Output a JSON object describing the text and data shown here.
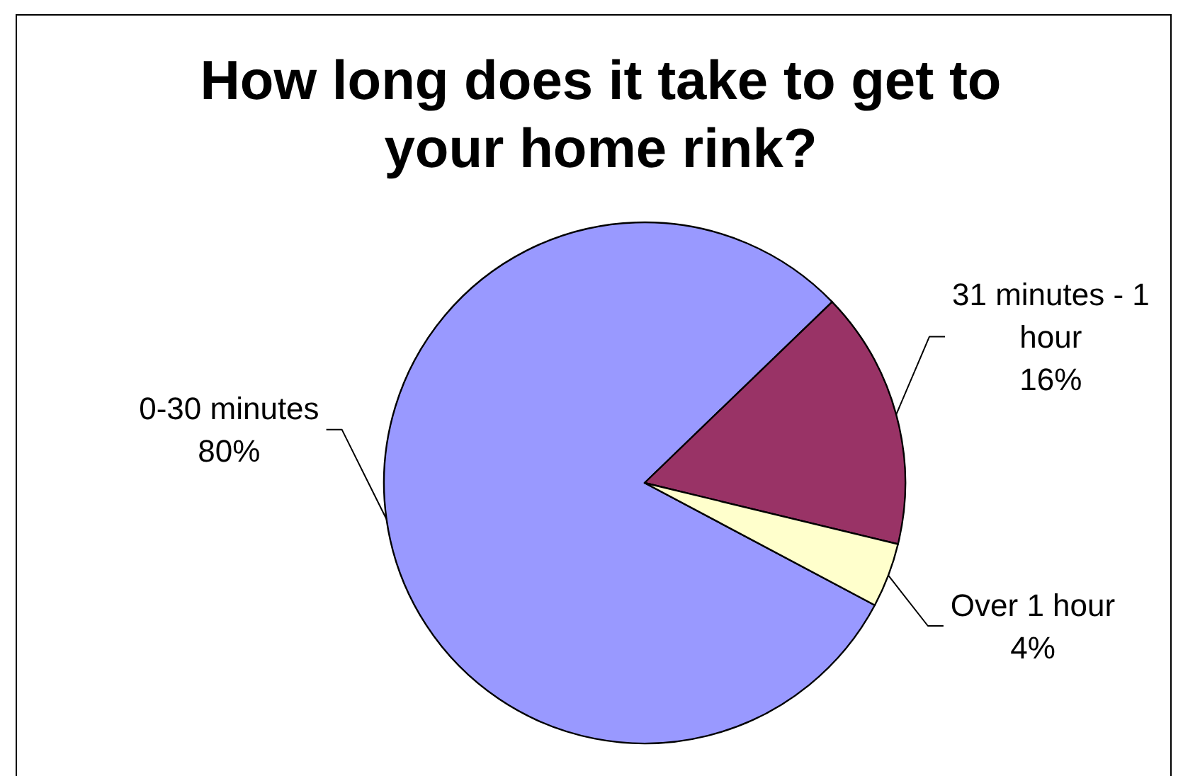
{
  "chart_data": {
    "type": "pie",
    "title": "How long does it take to get to your home rink?",
    "categories": [
      "0-30 minutes",
      "31 minutes - 1 hour",
      "Over 1 hour"
    ],
    "values": [
      80,
      16,
      4
    ],
    "colors": [
      "#9999ff",
      "#993366",
      "#ffffcc"
    ],
    "value_labels": [
      "80%",
      "16%",
      "4%"
    ]
  }
}
